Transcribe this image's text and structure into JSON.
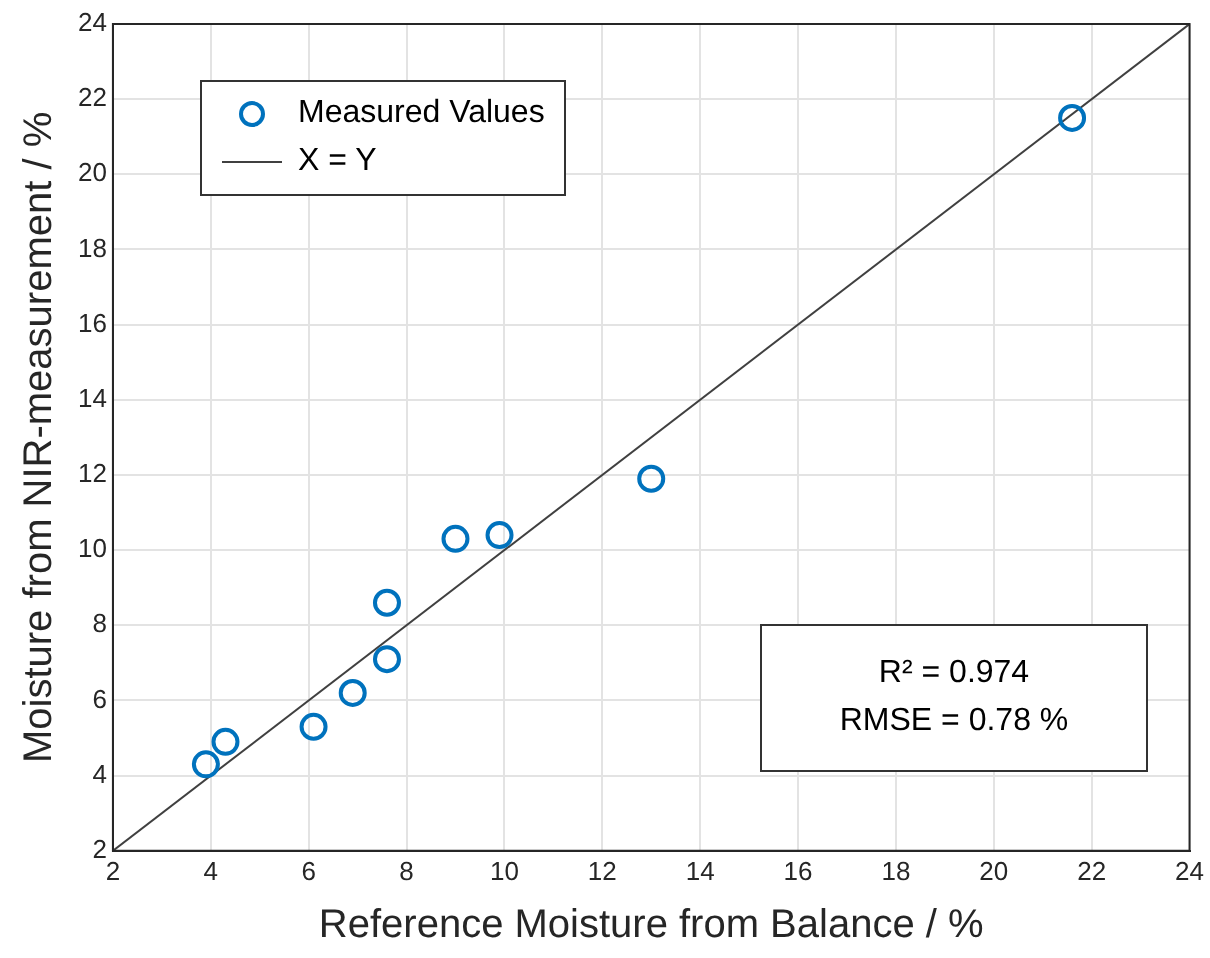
{
  "chart_data": {
    "type": "scatter",
    "xlabel": "Reference Moisture from Balance / %",
    "ylabel": "Moisture from NIR-measurement / %",
    "series": [
      {
        "name": "Measured Values",
        "type": "scatter",
        "color": "#0072bd",
        "x": [
          3.9,
          4.3,
          6.1,
          6.9,
          7.6,
          7.6,
          9.0,
          9.9,
          13.0,
          21.6
        ],
        "values": [
          4.3,
          4.9,
          5.3,
          6.2,
          7.1,
          8.6,
          10.3,
          10.4,
          11.9,
          21.5
        ],
        "marker": "circle"
      },
      {
        "name": "X = Y",
        "type": "line",
        "color": "#404040",
        "x": [
          2,
          24
        ],
        "values": [
          2,
          24
        ],
        "marker": "none"
      }
    ],
    "xlim": [
      2,
      24
    ],
    "xticks": [
      2,
      4,
      6,
      8,
      10,
      12,
      14,
      16,
      18,
      20,
      22,
      24
    ],
    "ylim": [
      2,
      24
    ],
    "yticks": [
      2,
      4,
      6,
      8,
      10,
      12,
      14,
      16,
      18,
      20,
      22,
      24
    ],
    "grid": true,
    "legend": "top left",
    "annotations": [
      "R² = 0.974",
      "RMSE = 0.78 %"
    ]
  }
}
